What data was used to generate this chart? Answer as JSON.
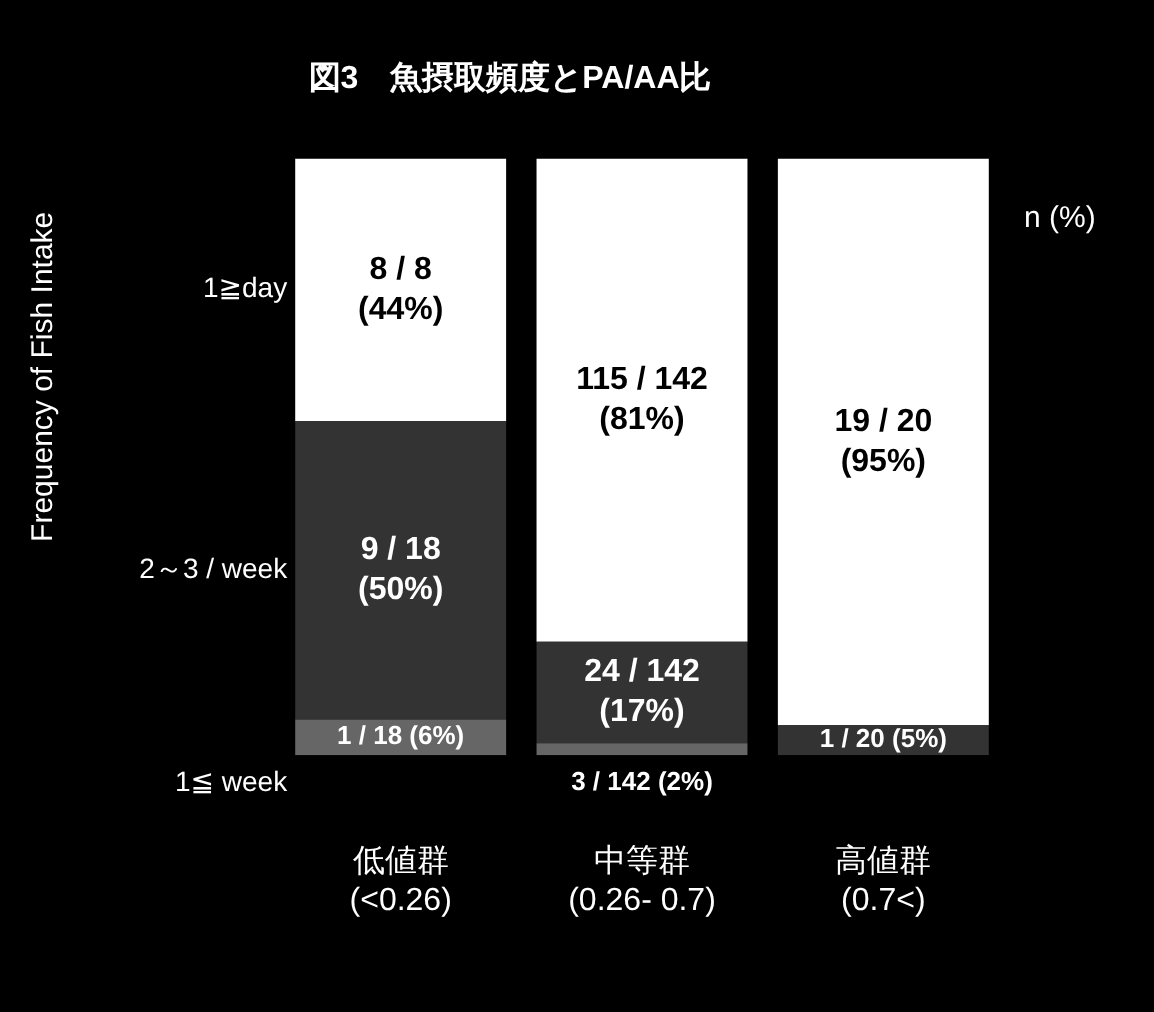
{
  "chart_data": {
    "type": "bar",
    "stacked": true,
    "title": "図3　魚摂取頻度とPA/AA比",
    "categories": [
      "低値群\n(<0.26)",
      "中等群\n(0.26- 0.7)",
      "高値群\n(0.7<)"
    ],
    "series": [
      {
        "name": "1≦ week",
        "color": "#666666",
        "values": [
          6,
          2,
          0
        ],
        "value_labels": [
          "1 / 18 (6%)",
          "3 / 142 (2%)",
          null
        ]
      },
      {
        "name": "2～3 / week",
        "color": "#333333",
        "values": [
          50,
          17,
          5
        ],
        "value_labels": [
          "9 / 18 (50%)",
          "24 / 142 (17%)",
          "1 / 20 (5%)"
        ]
      },
      {
        "name": "1≧day",
        "color": "#ffffff",
        "values": [
          44,
          81,
          95
        ],
        "value_labels": [
          "8 / 8 (44%)",
          "115 / 142 (81%)",
          "19 / 20 (95%)"
        ]
      }
    ],
    "annotations": [
      "Frequency of Fish Intake",
      "n (%)"
    ],
    "legend": false
  }
}
